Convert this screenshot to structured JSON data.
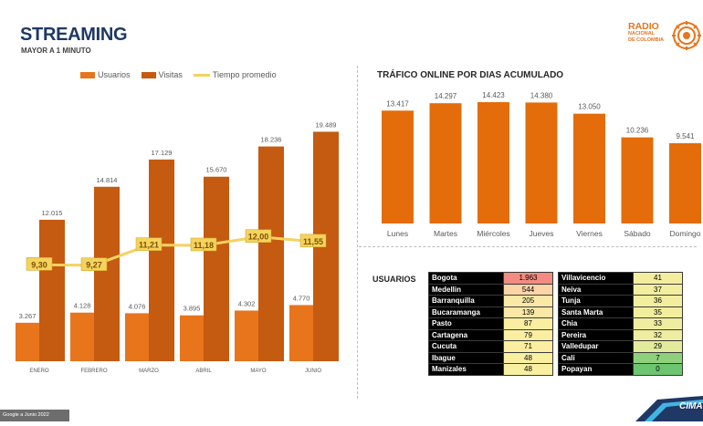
{
  "header": {
    "title": "STREAMING",
    "subtitle": "MAYOR A 1 MINUTO"
  },
  "logo": {
    "line1": "RADIO",
    "line2": "NACIONAL",
    "line3": "DE COLOMBIA"
  },
  "left_chart": {
    "legend": {
      "usuarios": "Usuarios",
      "visitas": "Visitas",
      "tiempo": "Tiempo promedio"
    }
  },
  "right_chart": {
    "title": "TRÁFICO ONLINE POR DIAS ACUMULADO"
  },
  "usuarios_section": {
    "title": "USUARIOS"
  },
  "cities_left": [
    {
      "name": "Bogota",
      "value": "1.963",
      "color": "#f28b82"
    },
    {
      "name": "Medellin",
      "value": "544",
      "color": "#fbd5a5"
    },
    {
      "name": "Barranquilla",
      "value": "205",
      "color": "#fce8a6"
    },
    {
      "name": "Bucaramanga",
      "value": "139",
      "color": "#fce8a6"
    },
    {
      "name": "Pasto",
      "value": "87",
      "color": "#fbeea0"
    },
    {
      "name": "Cartagena",
      "value": "79",
      "color": "#fbeea0"
    },
    {
      "name": "Cucuta",
      "value": "71",
      "color": "#fbeea0"
    },
    {
      "name": "Ibague",
      "value": "48",
      "color": "#f8f0a0"
    },
    {
      "name": "Manizales",
      "value": "48",
      "color": "#f8f0a0"
    }
  ],
  "cities_right": [
    {
      "name": "Villavicencio",
      "value": "41",
      "color": "#f3ee9e"
    },
    {
      "name": "Neiva",
      "value": "37",
      "color": "#f3ee9e"
    },
    {
      "name": "Tunja",
      "value": "36",
      "color": "#f3ee9e"
    },
    {
      "name": "Santa Marta",
      "value": "35",
      "color": "#f3ee9e"
    },
    {
      "name": "Chia",
      "value": "33",
      "color": "#eeeda0"
    },
    {
      "name": "Pereira",
      "value": "32",
      "color": "#eeeda0"
    },
    {
      "name": "Valledupar",
      "value": "29",
      "color": "#e3ea9c"
    },
    {
      "name": "Cali",
      "value": "7",
      "color": "#8fd07c"
    },
    {
      "name": "Popayan",
      "value": "0",
      "color": "#6cc56f"
    }
  ],
  "footer": {
    "source": "Google a Junio 2022"
  },
  "brand": {
    "cima": "CIMA"
  },
  "colors": {
    "usuarios": "#e8741c",
    "visitas": "#c55a11",
    "tiempo": "#f4d35e",
    "right_bars": "#e46c0a"
  },
  "chart_data": [
    {
      "type": "bar",
      "categories": [
        "ENERO",
        "FEBRERO",
        "MARZO",
        "ABRIL",
        "MAYO",
        "JUNIO"
      ],
      "series": [
        {
          "name": "Usuarios",
          "values": [
            3267,
            4128,
            4076,
            3895,
            4302,
            4770
          ],
          "labels": [
            "3.267",
            "4.128",
            "4.076",
            "3.895",
            "4.302",
            "4.770"
          ]
        },
        {
          "name": "Visitas",
          "values": [
            12015,
            14814,
            17129,
            15670,
            18236,
            19489
          ],
          "labels": [
            "12.015",
            "14.814",
            "17.129",
            "15.670",
            "18.236",
            "19.489"
          ]
        },
        {
          "name": "Tiempo promedio",
          "type": "line",
          "values": [
            9.3,
            9.27,
            11.21,
            11.18,
            12.0,
            11.55
          ],
          "labels": [
            "9,30",
            "9,27",
            "11,21",
            "11,18",
            "12,00",
            "11,55"
          ]
        }
      ],
      "ylim": [
        0,
        22000
      ],
      "line_ylim": [
        0,
        25
      ],
      "legend": "top",
      "grid": false
    },
    {
      "type": "bar",
      "title": "TRÁFICO ONLINE POR DIAS ACUMULADO",
      "categories": [
        "Lunes",
        "Martes",
        "Miércoles",
        "Jueves",
        "Viernes",
        "Sábado",
        "Domingo"
      ],
      "values": [
        13417,
        14297,
        14423,
        14380,
        13050,
        10236,
        9541
      ],
      "labels": [
        "13.417",
        "14.297",
        "14.423",
        "14.380",
        "13.050",
        "10.236",
        "9.541"
      ],
      "ylim": [
        0,
        16000
      ],
      "grid": false
    }
  ]
}
